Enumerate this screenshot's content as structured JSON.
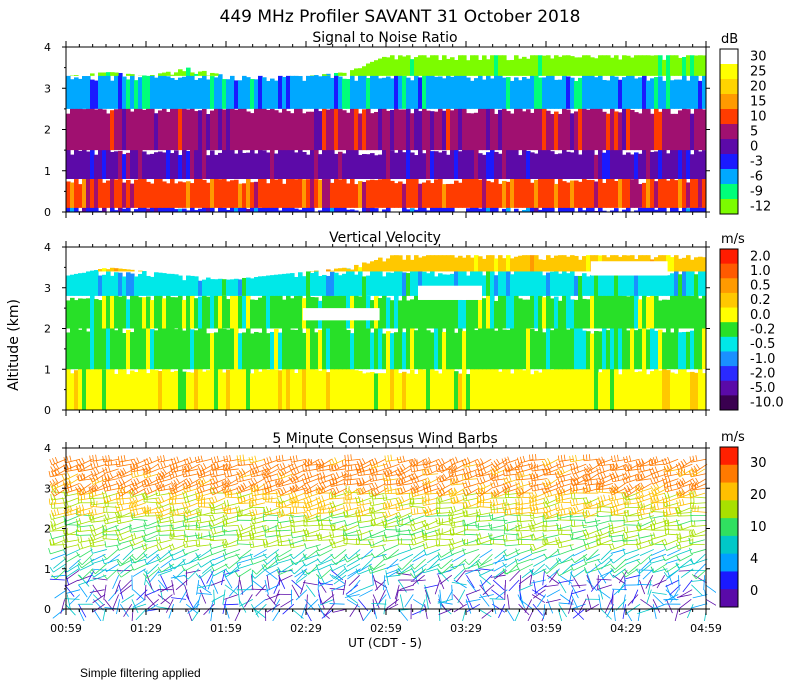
{
  "figure": {
    "title": "449 MHz Profiler SAVANT 31 October 2018",
    "ylabel": "Altitude (km)",
    "xlabel": "UT  (CDT - 5)",
    "xticks": [
      "00:59",
      "01:29",
      "01:59",
      "02:29",
      "02:59",
      "03:29",
      "03:59",
      "04:29",
      "04:59"
    ],
    "note": "Simple filtering applied"
  },
  "chart_data": [
    {
      "type": "heatmap",
      "title": "Signal to Noise Ratio",
      "ylim": [
        0,
        4
      ],
      "yticks": [
        "0",
        "1",
        "2",
        "3",
        "4"
      ],
      "colorbar": {
        "unit": "dB",
        "labels": [
          "30",
          "25",
          "20",
          "15",
          "10",
          "5",
          "0",
          "-3",
          "-6",
          "-9",
          "-12"
        ],
        "colors": [
          "#ffffff",
          "#ffff00",
          "#ffd400",
          "#ff9a00",
          "#ff3c00",
          "#a01070",
          "#5c0aa8",
          "#1a1aff",
          "#00a8ff",
          "#00ff7a",
          "#7cfc00"
        ]
      },
      "layers": [
        {
          "altitude_km": [
            0.0,
            0.1
          ],
          "db": -3
        },
        {
          "altitude_km": [
            0.1,
            0.8
          ],
          "db": 10
        },
        {
          "altitude_km": [
            0.8,
            1.5
          ],
          "db": 0
        },
        {
          "altitude_km": [
            1.5,
            2.5
          ],
          "db": 3
        },
        {
          "altitude_km": [
            2.5,
            3.3
          ],
          "db": -6
        },
        {
          "altitude_km": [
            3.3,
            3.8
          ],
          "db": -12
        }
      ],
      "data_top_km": [
        3.3,
        3.4,
        3.3,
        3.5,
        3.3,
        3.3,
        3.3,
        3.4,
        3.8,
        3.8,
        3.8,
        3.8,
        3.8,
        3.8,
        3.8,
        3.8,
        3.8
      ]
    },
    {
      "type": "heatmap",
      "title": "Vertical Velocity",
      "ylim": [
        0,
        4
      ],
      "yticks": [
        "0",
        "1",
        "2",
        "3",
        "4"
      ],
      "colorbar": {
        "unit": "m/s",
        "labels": [
          "2.0",
          "1.0",
          "0.5",
          "0.2",
          "0.0",
          "-0.2",
          "-0.5",
          "-1.0",
          "-2.0",
          "-5.0",
          "-10.0"
        ],
        "colors": [
          "#ff1c00",
          "#ff5a00",
          "#ff9a00",
          "#ffc800",
          "#ffff00",
          "#28e028",
          "#00e8e8",
          "#1a90ff",
          "#2a2aff",
          "#5a0aa8",
          "#3a0050"
        ]
      },
      "layers": [
        {
          "altitude_km": [
            0.0,
            1.0
          ],
          "mps": 0.0
        },
        {
          "altitude_km": [
            1.0,
            2.0
          ],
          "mps": -0.2
        },
        {
          "altitude_km": [
            2.0,
            2.8
          ],
          "mps": -0.2
        },
        {
          "altitude_km": [
            2.8,
            3.4
          ],
          "mps": -0.5
        },
        {
          "altitude_km": [
            3.4,
            3.8
          ],
          "mps": 0.2
        }
      ],
      "data_top_km": [
        3.3,
        3.5,
        3.4,
        3.3,
        3.2,
        3.3,
        3.4,
        3.5,
        3.8,
        3.8,
        3.8,
        3.8,
        3.8,
        3.8,
        3.8,
        3.8,
        3.8
      ]
    },
    {
      "type": "heatmap",
      "title": "5 Minute Consensus Wind Barbs",
      "ylim": [
        0,
        4
      ],
      "yticks": [
        "0",
        "1",
        "2",
        "3",
        "4"
      ],
      "colorbar": {
        "unit": "m/s",
        "labels": [
          "30",
          "20",
          "10",
          "4",
          "0"
        ],
        "colors": [
          "#ff2000",
          "#ff7a00",
          "#ffc000",
          "#a8e000",
          "#30e060",
          "#00c8c8",
          "#00a0ff",
          "#1a1aff",
          "#5a0aa8"
        ]
      },
      "barb_layers": [
        {
          "altitude_km": [
            0.0,
            1.0
          ],
          "mps": 2,
          "dir_deg": 200
        },
        {
          "altitude_km": [
            1.0,
            1.6
          ],
          "mps": 6,
          "dir_deg": 240
        },
        {
          "altitude_km": [
            1.6,
            2.4
          ],
          "mps": 11,
          "dir_deg": 260
        },
        {
          "altitude_km": [
            2.4,
            3.0
          ],
          "mps": 16,
          "dir_deg": 260
        },
        {
          "altitude_km": [
            3.0,
            3.8
          ],
          "mps": 22,
          "dir_deg": 250
        }
      ]
    }
  ]
}
